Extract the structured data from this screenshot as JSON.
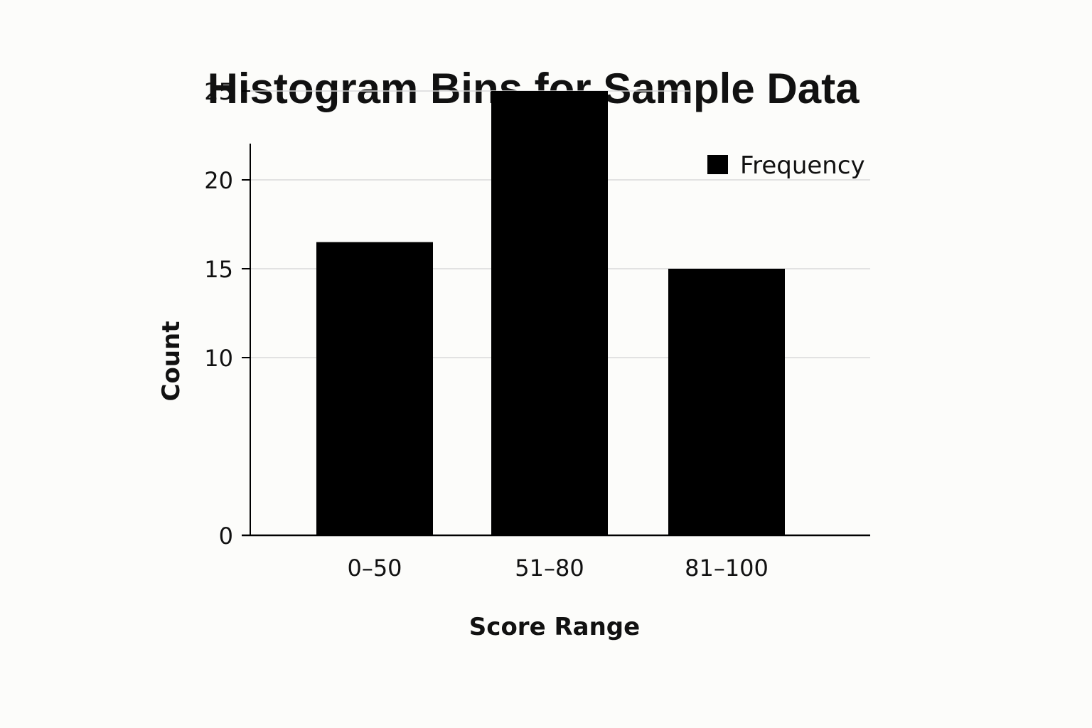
{
  "chart_data": {
    "type": "bar",
    "title": "Histogram Bins for Sample Data",
    "xlabel": "Score Range",
    "ylabel": "Count",
    "categories": [
      "0–50",
      "51–80",
      "81–100"
    ],
    "series": [
      {
        "name": "Frequency",
        "values": [
          16.5,
          25,
          15
        ]
      }
    ],
    "ylim": [
      0,
      27
    ],
    "yticks": [
      0,
      10,
      15,
      20,
      25
    ],
    "yticks_labels": [
      "0",
      "10",
      "15",
      "20",
      "25"
    ],
    "grid": true,
    "legend": "top-right",
    "colors": {
      "bar": "#000000",
      "grid": "#d9d9d9",
      "axis": "#000000",
      "text": "#111111",
      "background": "#fcfcfa"
    }
  }
}
